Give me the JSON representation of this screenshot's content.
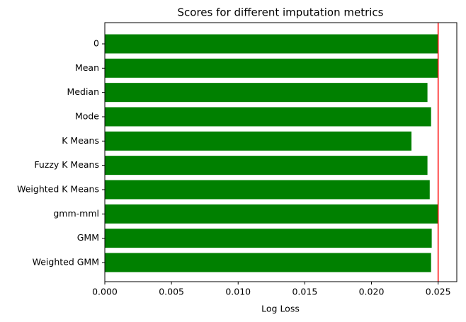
{
  "chart_data": {
    "type": "barh",
    "title": "Scores for different imputation metrics",
    "x_label": "Log Loss",
    "categories": [
      "0",
      "Mean",
      "Median",
      "Mode",
      "K Means",
      "Fuzzy K Means",
      "Weighted K Means",
      "gmm-mml",
      "GMM",
      "Weighted GMM"
    ],
    "values": [
      0.025,
      0.025,
      0.0242,
      0.02447,
      0.023,
      0.0242,
      0.02437,
      0.025,
      0.02452,
      0.02447
    ],
    "color": "#008000",
    "xlim": [
      0,
      0.0264
    ],
    "xticks": [
      {
        "value": 0,
        "label": "0.000"
      },
      {
        "value": 0.005,
        "label": "0.005"
      },
      {
        "value": 0.01,
        "label": "0.010"
      },
      {
        "value": 0.015,
        "label": "0.015"
      },
      {
        "value": 0.02,
        "label": "0.020"
      },
      {
        "value": 0.025,
        "label": "0.025"
      }
    ],
    "ref_line": 0.025,
    "ref_line_color": "#ff0000"
  }
}
